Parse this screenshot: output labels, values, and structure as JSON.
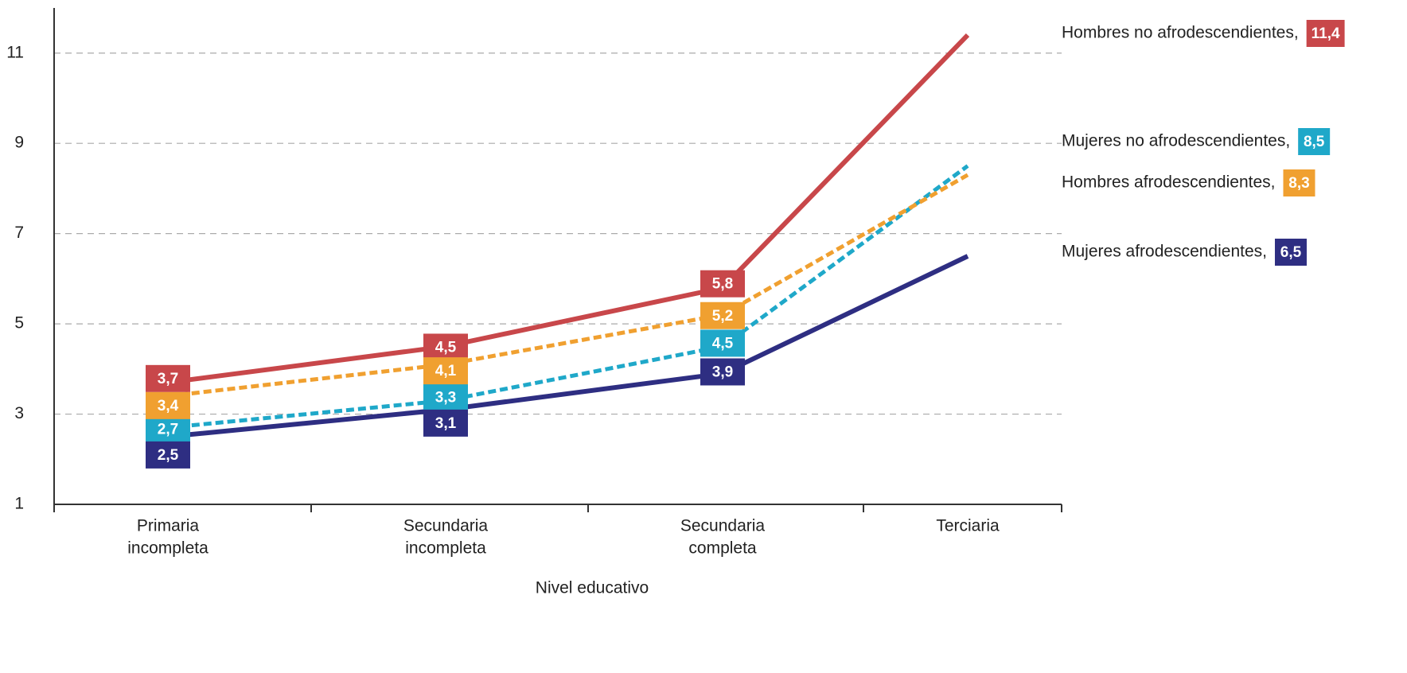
{
  "chart_data": {
    "type": "line",
    "x_label": "Nivel educativo",
    "categories": [
      [
        "Primaria",
        "incompleta"
      ],
      [
        "Secundaria",
        "incompleta"
      ],
      [
        "Secundaria",
        "completa"
      ],
      [
        "Terciaria"
      ]
    ],
    "ylim": [
      1,
      12
    ],
    "yticks": [
      1,
      3,
      5,
      7,
      9,
      11
    ],
    "grid": true,
    "series": [
      {
        "name": "Hombres no afrodescendientes,",
        "color": "#c8474a",
        "dashed": false,
        "values": [
          3.7,
          4.5,
          5.8,
          11.4
        ],
        "value_labels": [
          "3,7",
          "4,5",
          "5,8",
          "11,4"
        ]
      },
      {
        "name": "Mujeres no afrodescendientes,",
        "color": "#1fa8c9",
        "dashed": true,
        "values": [
          2.7,
          3.3,
          4.5,
          8.5
        ],
        "value_labels": [
          "2,7",
          "3,3",
          "4,5",
          "8,5"
        ]
      },
      {
        "name": "Hombres afrodescendientes,",
        "color": "#f0a030",
        "dashed": true,
        "values": [
          3.4,
          4.1,
          5.2,
          8.3
        ],
        "value_labels": [
          "3,4",
          "4,1",
          "5,2",
          "8,3"
        ]
      },
      {
        "name": "Mujeres afrodescendientes,",
        "color": "#2e2e82",
        "dashed": false,
        "values": [
          2.5,
          3.1,
          3.9,
          6.5
        ],
        "value_labels": [
          "2,5",
          "3,1",
          "3,9",
          "6,5"
        ]
      }
    ]
  }
}
